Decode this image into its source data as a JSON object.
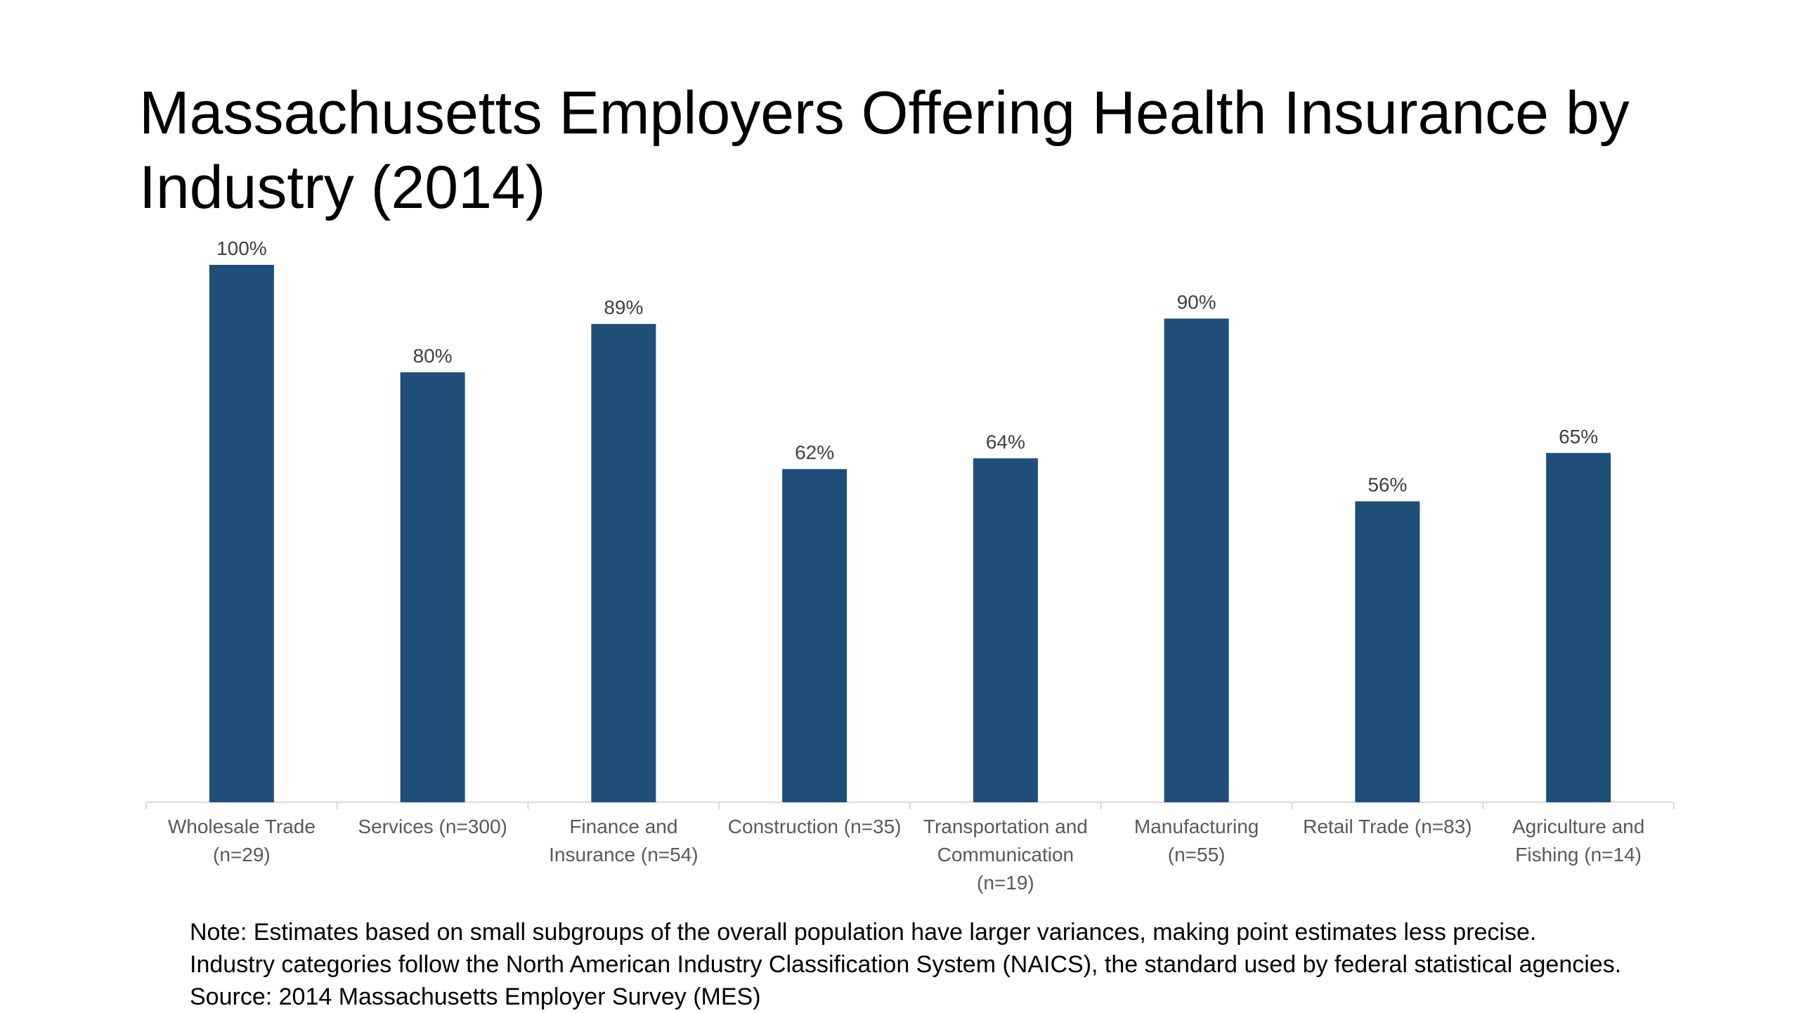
{
  "chart_data": {
    "type": "bar",
    "title": "Massachusetts Employers Offering Health Insurance by Industry (2014)",
    "categories": [
      [
        "Wholesale Trade",
        "(n=29)"
      ],
      [
        "Services (n=300)"
      ],
      [
        "Finance and",
        "Insurance (n=54)"
      ],
      [
        "Construction (n=35)"
      ],
      [
        "Transportation and",
        "Communication",
        "(n=19)"
      ],
      [
        "Manufacturing",
        "(n=55)"
      ],
      [
        "Retail Trade (n=83)"
      ],
      [
        "Agriculture and",
        "Fishing (n=14)"
      ]
    ],
    "values": [
      100,
      80,
      89,
      62,
      64,
      90,
      56,
      65
    ],
    "value_labels": [
      "100%",
      "80%",
      "89%",
      "62%",
      "64%",
      "90%",
      "56%",
      "65%"
    ],
    "ylim": [
      0,
      100
    ],
    "grid": false,
    "legend": "none",
    "bar_color": "#1f4e79",
    "axis_color": "#d9d9d9"
  },
  "notes": {
    "line1": "Note: Estimates based on small subgroups of the overall population have larger variances, making point estimates less precise.",
    "line2": "Industry categories follow the North American Industry Classification System (NAICS), the standard used by federal statistical agencies.",
    "line3": "Source: 2014 Massachusetts Employer Survey (MES)"
  }
}
